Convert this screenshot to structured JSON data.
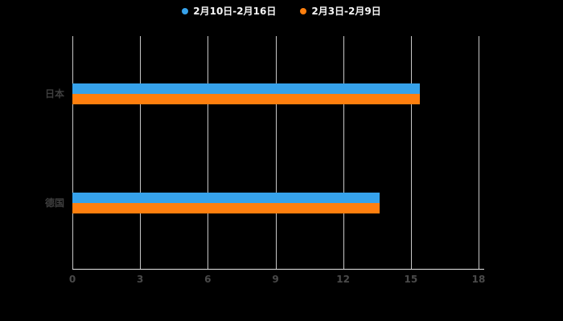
{
  "chart_data": {
    "type": "bar",
    "orientation": "horizontal",
    "title": "",
    "categories": [
      "日本",
      "德国"
    ],
    "series": [
      {
        "name": "2月10日-2月16日",
        "color": "#36a2eb",
        "values": [
          15.4,
          13.6
        ]
      },
      {
        "name": "2月3日-2月9日",
        "color": "#ff7f0e",
        "values": [
          15.4,
          13.6
        ]
      }
    ],
    "xlabel": "",
    "ylabel": "",
    "xlim": [
      0,
      18
    ],
    "xticks": [
      0,
      3,
      6,
      9,
      12,
      15,
      18
    ],
    "grid": true,
    "legend_position": "top",
    "background": "#000000"
  },
  "colors": {
    "legend_text": "#f5f5f5",
    "category_text": "#3f3f3f",
    "tick_text": "#4a4a4a",
    "gridline": "#ebebeb",
    "axis_line": "#e8e8e8"
  }
}
